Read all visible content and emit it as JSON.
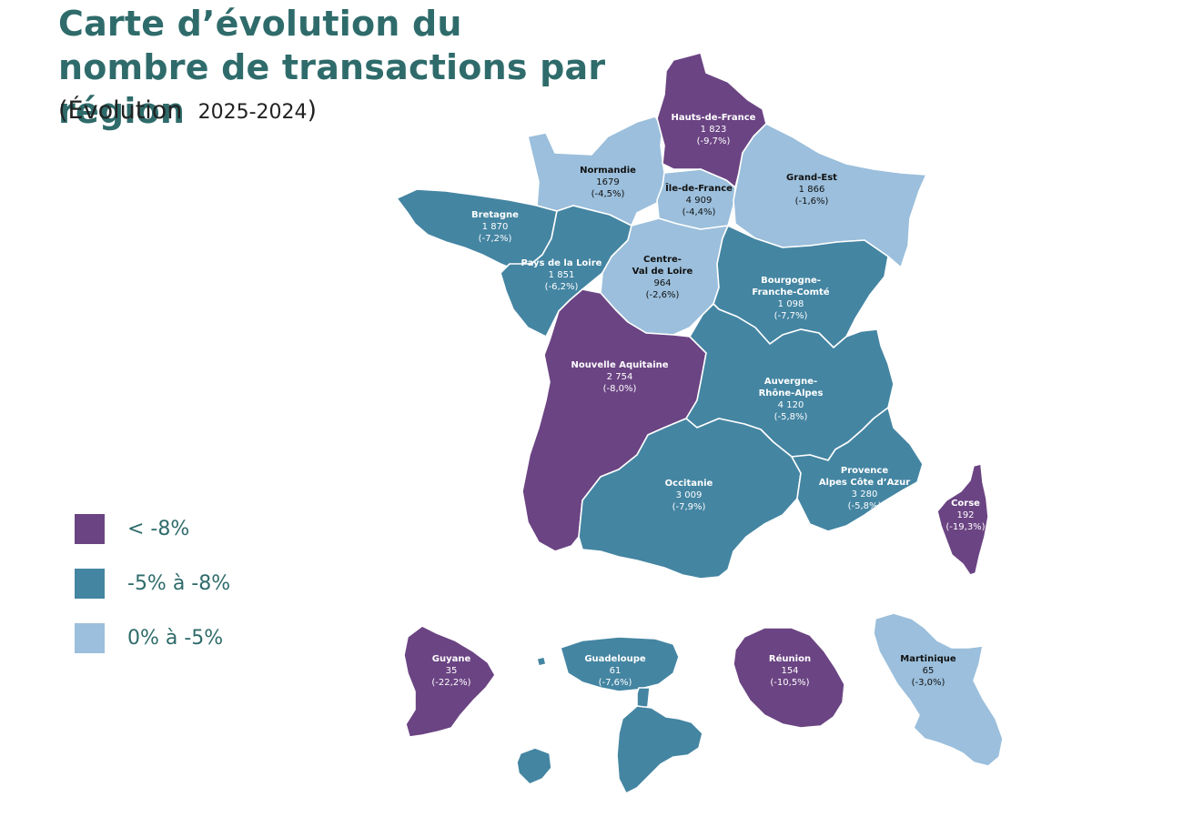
{
  "title": "Carte d’évolution du nombre de transactions par région",
  "subtitle_prefix": "(Évolution",
  "subtitle_years": "2025-2024",
  "subtitle_suffix": ")",
  "colors": {
    "dark": "#6b4483",
    "mid": "#4485a2",
    "light": "#9bbfdc",
    "title": "#2f6b6b"
  },
  "legend": [
    {
      "label": "< -8%",
      "class": "dark"
    },
    {
      "label": "-5% à -8%",
      "class": "mid"
    },
    {
      "label": "0% à -5%",
      "class": "light"
    }
  ],
  "regions": {
    "hdf": {
      "name": "Hauts-de-France",
      "value": "1 823",
      "change": "(-9,7%)",
      "class": "dark"
    },
    "normandie": {
      "name": "Normandie",
      "value": "1679",
      "change": "(-4,5%)",
      "class": "light"
    },
    "idf": {
      "name": "Île-de-France",
      "value": "4 909",
      "change": "(-4,4%)",
      "class": "light"
    },
    "grandest": {
      "name": "Grand-Est",
      "value": "1 866",
      "change": "(-1,6%)",
      "class": "light"
    },
    "bretagne": {
      "name": "Bretagne",
      "value": "1 870",
      "change": "(-7,2%)",
      "class": "mid"
    },
    "pdl": {
      "name": "Pays de la Loire",
      "value": "1 851",
      "change": "(-6,2%)",
      "class": "mid"
    },
    "cvl": {
      "name_l1": "Centre-",
      "name_l2": "Val de Loire",
      "value": "964",
      "change": "(-2,6%)",
      "class": "light"
    },
    "bfc": {
      "name_l1": "Bourgogne-",
      "name_l2": "Franche-Comté",
      "value": "1 098",
      "change": "(-7,7%)",
      "class": "mid"
    },
    "na": {
      "name": "Nouvelle Aquitaine",
      "value": "2 754",
      "change": "(-8,0%)",
      "class": "dark"
    },
    "ara": {
      "name_l1": "Auvergne-",
      "name_l2": "Rhône-Alpes",
      "value": "4 120",
      "change": "(-5,8%)",
      "class": "mid"
    },
    "occitanie": {
      "name": "Occitanie",
      "value": "3 009",
      "change": "(-7,9%)",
      "class": "mid"
    },
    "paca": {
      "name_l1": "Provence",
      "name_l2": "Alpes Côte d’Azur",
      "value": "3 280",
      "change": "(-5,8%)",
      "class": "mid"
    },
    "corse": {
      "name": "Corse",
      "value": "192",
      "change": "(-19,3%)",
      "class": "dark"
    },
    "guyane": {
      "name": "Guyane",
      "value": "35",
      "change": "(-22,2%)",
      "class": "dark"
    },
    "guadeloupe": {
      "name": "Guadeloupe",
      "value": "61",
      "change": "(-7,6%)",
      "class": "mid"
    },
    "reunion": {
      "name": "Réunion",
      "value": "154",
      "change": "(-10,5%)",
      "class": "dark"
    },
    "martinique": {
      "name": "Martinique",
      "value": "65",
      "change": "(-3,0%)",
      "class": "light"
    }
  }
}
